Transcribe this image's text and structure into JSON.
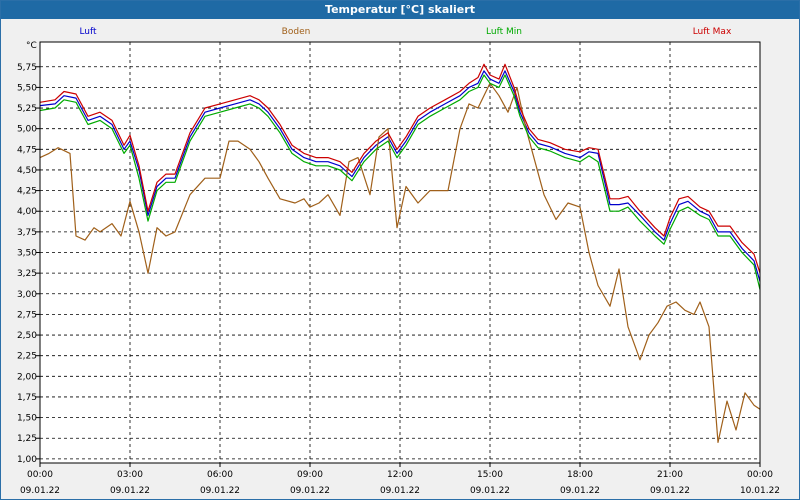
{
  "window": {
    "title": "Temperatur [°C] skaliert"
  },
  "chart_data": {
    "type": "line",
    "title": "Temperatur [°C] skaliert",
    "ylabel": "°C",
    "ylim": [
      0.95,
      6.05
    ],
    "xlim": [
      0,
      24
    ],
    "grid": true,
    "yticks": [
      "1,00",
      "1,25",
      "1,50",
      "1,75",
      "2,00",
      "2,25",
      "2,50",
      "2,75",
      "3,00",
      "3,25",
      "3,50",
      "3,75",
      "4,00",
      "4,25",
      "4,50",
      "4,75",
      "5,00",
      "5,25",
      "5,50",
      "5,75"
    ],
    "xticks": [
      {
        "time": "00:00",
        "date": "09.01.22"
      },
      {
        "time": "03:00",
        "date": "09.01.22"
      },
      {
        "time": "06:00",
        "date": "09.01.22"
      },
      {
        "time": "09:00",
        "date": "09.01.22"
      },
      {
        "time": "12:00",
        "date": "09.01.22"
      },
      {
        "time": "15:00",
        "date": "09.01.22"
      },
      {
        "time": "18:00",
        "date": "09.01.22"
      },
      {
        "time": "21:00",
        "date": "09.01.22"
      },
      {
        "time": "00:00",
        "date": "10.01.22"
      }
    ],
    "series": [
      {
        "name": "Luft",
        "color": "#0000cc",
        "x": [
          0,
          0.5,
          0.8,
          1.2,
          1.6,
          2.0,
          2.4,
          2.8,
          3.0,
          3.3,
          3.6,
          3.9,
          4.2,
          4.5,
          5.0,
          5.5,
          6.0,
          6.5,
          7.0,
          7.3,
          7.6,
          8.0,
          8.4,
          8.8,
          9.2,
          9.6,
          10.0,
          10.4,
          10.8,
          11.2,
          11.6,
          11.9,
          12.2,
          12.6,
          13.0,
          13.5,
          14.0,
          14.3,
          14.6,
          14.8,
          15.0,
          15.3,
          15.5,
          15.8,
          16.0,
          16.3,
          16.6,
          17.0,
          17.5,
          18.0,
          18.3,
          18.6,
          19.0,
          19.3,
          19.6,
          20.0,
          20.5,
          20.8,
          21.0,
          21.3,
          21.6,
          22.0,
          22.3,
          22.6,
          23.0,
          23.4,
          23.8,
          24.0
        ],
        "y": [
          5.28,
          5.3,
          5.4,
          5.37,
          5.1,
          5.15,
          5.05,
          4.75,
          4.85,
          4.5,
          3.95,
          4.3,
          4.4,
          4.4,
          4.9,
          5.2,
          5.25,
          5.3,
          5.35,
          5.3,
          5.2,
          5.0,
          4.75,
          4.65,
          4.6,
          4.6,
          4.55,
          4.42,
          4.65,
          4.8,
          4.9,
          4.7,
          4.85,
          5.1,
          5.2,
          5.3,
          5.4,
          5.5,
          5.55,
          5.7,
          5.6,
          5.55,
          5.7,
          5.45,
          5.2,
          4.95,
          4.82,
          4.78,
          4.7,
          4.65,
          4.72,
          4.7,
          4.08,
          4.08,
          4.1,
          3.95,
          3.75,
          3.65,
          3.85,
          4.08,
          4.12,
          4.0,
          3.95,
          3.75,
          3.75,
          3.55,
          3.4,
          3.15
        ]
      },
      {
        "name": "Boden",
        "color": "#a0601a",
        "x": [
          0,
          0.3,
          0.6,
          1.0,
          1.2,
          1.5,
          1.8,
          2.0,
          2.4,
          2.7,
          3.0,
          3.3,
          3.6,
          3.9,
          4.2,
          4.5,
          5.0,
          5.5,
          6.0,
          6.3,
          6.6,
          7.0,
          7.3,
          7.6,
          8.0,
          8.5,
          8.8,
          9.0,
          9.3,
          9.6,
          10.0,
          10.3,
          10.6,
          11.0,
          11.3,
          11.6,
          11.9,
          12.2,
          12.6,
          13.0,
          13.3,
          13.6,
          14.0,
          14.3,
          14.6,
          15.0,
          15.3,
          15.6,
          15.9,
          16.2,
          16.5,
          16.8,
          17.2,
          17.6,
          18.0,
          18.3,
          18.6,
          19.0,
          19.3,
          19.6,
          20.0,
          20.3,
          20.6,
          20.9,
          21.2,
          21.5,
          21.8,
          22.0,
          22.3,
          22.6,
          22.9,
          23.2,
          23.5,
          23.8,
          24.0
        ],
        "y": [
          4.65,
          4.7,
          4.77,
          4.7,
          3.7,
          3.65,
          3.8,
          3.75,
          3.85,
          3.7,
          4.12,
          3.75,
          3.25,
          3.8,
          3.7,
          3.75,
          4.2,
          4.4,
          4.4,
          4.85,
          4.85,
          4.75,
          4.6,
          4.4,
          4.15,
          4.1,
          4.15,
          4.05,
          4.1,
          4.2,
          3.95,
          4.6,
          4.65,
          4.2,
          4.9,
          5.0,
          3.8,
          4.3,
          4.1,
          4.25,
          4.25,
          4.25,
          5.0,
          5.3,
          5.25,
          5.55,
          5.4,
          5.2,
          5.5,
          5.0,
          4.6,
          4.2,
          3.9,
          4.1,
          4.05,
          3.5,
          3.1,
          2.85,
          3.3,
          2.6,
          2.2,
          2.5,
          2.65,
          2.85,
          2.9,
          2.8,
          2.75,
          2.9,
          2.6,
          1.2,
          1.7,
          1.35,
          1.8,
          1.65,
          1.6
        ]
      },
      {
        "name": "Luft Min",
        "color": "#00aa00",
        "x": [
          0,
          0.5,
          0.8,
          1.2,
          1.6,
          2.0,
          2.4,
          2.8,
          3.0,
          3.3,
          3.6,
          3.9,
          4.2,
          4.5,
          5.0,
          5.5,
          6.0,
          6.5,
          7.0,
          7.3,
          7.6,
          8.0,
          8.4,
          8.8,
          9.2,
          9.6,
          10.0,
          10.4,
          10.8,
          11.2,
          11.6,
          11.9,
          12.2,
          12.6,
          13.0,
          13.5,
          14.0,
          14.3,
          14.6,
          14.8,
          15.0,
          15.3,
          15.5,
          15.8,
          16.0,
          16.3,
          16.6,
          17.0,
          17.5,
          18.0,
          18.3,
          18.6,
          19.0,
          19.3,
          19.6,
          20.0,
          20.5,
          20.8,
          21.0,
          21.3,
          21.6,
          22.0,
          22.3,
          22.6,
          23.0,
          23.4,
          23.8,
          24.0
        ],
        "y": [
          5.22,
          5.25,
          5.35,
          5.32,
          5.05,
          5.1,
          5.0,
          4.7,
          4.8,
          4.4,
          3.88,
          4.25,
          4.35,
          4.35,
          4.85,
          5.15,
          5.2,
          5.25,
          5.3,
          5.25,
          5.15,
          4.95,
          4.7,
          4.6,
          4.55,
          4.55,
          4.5,
          4.37,
          4.6,
          4.75,
          4.85,
          4.65,
          4.8,
          5.05,
          5.15,
          5.25,
          5.35,
          5.45,
          5.5,
          5.65,
          5.55,
          5.5,
          5.65,
          5.4,
          5.15,
          4.9,
          4.77,
          4.73,
          4.65,
          4.6,
          4.67,
          4.6,
          4.0,
          4.0,
          4.05,
          3.88,
          3.7,
          3.6,
          3.78,
          4.0,
          4.05,
          3.95,
          3.9,
          3.7,
          3.7,
          3.5,
          3.35,
          3.05
        ]
      },
      {
        "name": "Luft Max",
        "color": "#cc0000",
        "x": [
          0,
          0.5,
          0.8,
          1.2,
          1.6,
          2.0,
          2.4,
          2.8,
          3.0,
          3.3,
          3.6,
          3.9,
          4.2,
          4.5,
          5.0,
          5.5,
          6.0,
          6.5,
          7.0,
          7.3,
          7.6,
          8.0,
          8.4,
          8.8,
          9.2,
          9.6,
          10.0,
          10.4,
          10.8,
          11.2,
          11.6,
          11.9,
          12.2,
          12.6,
          13.0,
          13.5,
          14.0,
          14.3,
          14.6,
          14.8,
          15.0,
          15.3,
          15.5,
          15.8,
          16.0,
          16.3,
          16.6,
          17.0,
          17.5,
          18.0,
          18.3,
          18.6,
          19.0,
          19.3,
          19.6,
          20.0,
          20.5,
          20.8,
          21.0,
          21.3,
          21.6,
          22.0,
          22.3,
          22.6,
          23.0,
          23.4,
          23.8,
          24.0
        ],
        "y": [
          5.32,
          5.35,
          5.45,
          5.42,
          5.15,
          5.2,
          5.1,
          4.8,
          4.92,
          4.55,
          4.0,
          4.35,
          4.45,
          4.45,
          4.95,
          5.25,
          5.3,
          5.35,
          5.4,
          5.35,
          5.25,
          5.05,
          4.8,
          4.7,
          4.65,
          4.65,
          4.6,
          4.47,
          4.7,
          4.85,
          4.95,
          4.75,
          4.9,
          5.15,
          5.25,
          5.35,
          5.45,
          5.55,
          5.62,
          5.78,
          5.65,
          5.6,
          5.78,
          5.5,
          5.25,
          5.0,
          4.87,
          4.83,
          4.75,
          4.72,
          4.77,
          4.75,
          4.15,
          4.15,
          4.18,
          4.0,
          3.8,
          3.7,
          3.92,
          4.15,
          4.18,
          4.05,
          4.0,
          3.82,
          3.82,
          3.62,
          3.48,
          3.25
        ]
      }
    ]
  }
}
